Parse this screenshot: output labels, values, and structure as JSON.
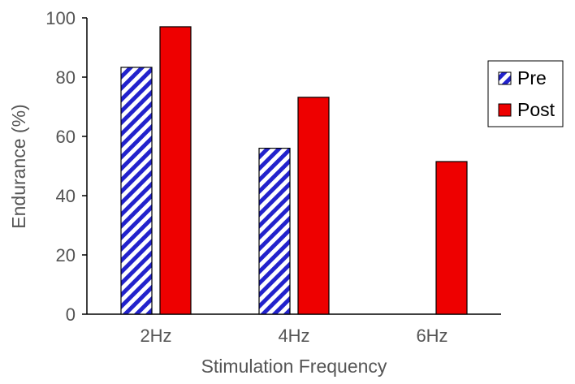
{
  "chart_data": {
    "type": "bar",
    "title": "",
    "xlabel": "Stimulation Frequency",
    "ylabel": "Endurance (%)",
    "ylim": [
      0,
      100
    ],
    "yticks": [
      0,
      20,
      40,
      60,
      80,
      100
    ],
    "categories": [
      "2Hz",
      "4Hz",
      "6Hz"
    ],
    "series": [
      {
        "name": "Pre",
        "values": [
          83.3,
          56.0,
          null
        ],
        "color": "#2222cc",
        "pattern": "diagonal-stripes"
      },
      {
        "name": "Post",
        "values": [
          97.0,
          73.2,
          51.5
        ],
        "color": "#ee0000",
        "pattern": "solid"
      }
    ],
    "grid": false,
    "legend": "right"
  }
}
